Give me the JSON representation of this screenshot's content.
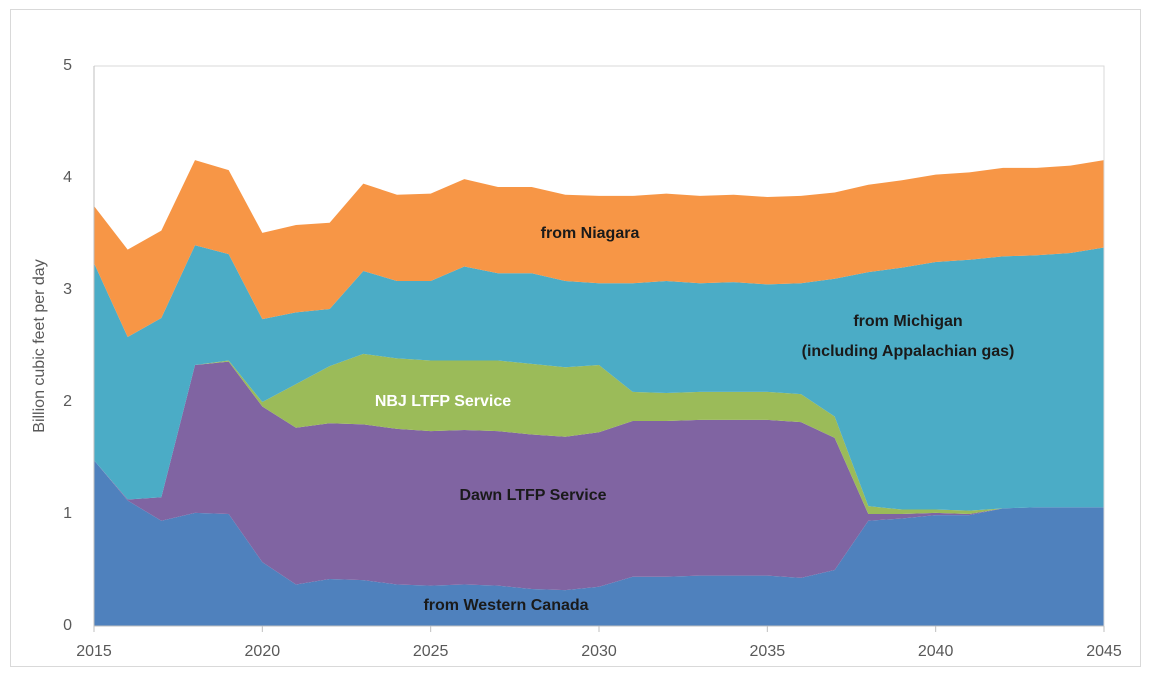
{
  "chart_data": {
    "type": "stacked_area",
    "y_label": "Billion cubic feet per day",
    "x": [
      2015,
      2016,
      2017,
      2018,
      2019,
      2020,
      2021,
      2022,
      2023,
      2024,
      2025,
      2026,
      2027,
      2028,
      2029,
      2030,
      2031,
      2032,
      2033,
      2034,
      2035,
      2036,
      2037,
      2038,
      2039,
      2040,
      2041,
      2042,
      2043,
      2044,
      2045
    ],
    "xlim": [
      2015,
      2045
    ],
    "xticks": [
      2015,
      2020,
      2025,
      2030,
      2035,
      2040,
      2045
    ],
    "ylim": [
      0,
      5
    ],
    "yticks": [
      0,
      1,
      2,
      3,
      4,
      5
    ],
    "grid": false,
    "series": [
      {
        "name": "from Western Canada",
        "color": "#4f81bd",
        "values": [
          1.48,
          1.12,
          0.94,
          1.01,
          1.0,
          0.57,
          0.37,
          0.42,
          0.41,
          0.37,
          0.36,
          0.37,
          0.36,
          0.33,
          0.32,
          0.35,
          0.44,
          0.44,
          0.45,
          0.45,
          0.45,
          0.43,
          0.5,
          0.94,
          0.96,
          0.99,
          0.99,
          1.05,
          1.06,
          1.06,
          1.06
        ]
      },
      {
        "name": "Dawn LTFP Service",
        "color": "#8064a2",
        "values": [
          0,
          0.01,
          0.21,
          1.32,
          1.36,
          1.39,
          1.4,
          1.39,
          1.39,
          1.39,
          1.38,
          1.38,
          1.38,
          1.38,
          1.37,
          1.38,
          1.39,
          1.39,
          1.39,
          1.39,
          1.39,
          1.39,
          1.18,
          0.06,
          0.04,
          0.02,
          0.01,
          0,
          0,
          0,
          0
        ]
      },
      {
        "name": "NBJ LTFP Service",
        "color": "#9bbb59",
        "values": [
          0,
          0,
          0,
          0,
          0.01,
          0.04,
          0.39,
          0.51,
          0.63,
          0.63,
          0.63,
          0.62,
          0.63,
          0.63,
          0.62,
          0.6,
          0.26,
          0.25,
          0.25,
          0.25,
          0.25,
          0.25,
          0.19,
          0.07,
          0.04,
          0.03,
          0.03,
          0,
          0,
          0,
          0
        ]
      },
      {
        "name": "from Michigan\n(including Appalachian gas)",
        "color": "#4bacc6",
        "values": [
          1.76,
          1.45,
          1.6,
          1.07,
          0.95,
          0.74,
          0.64,
          0.51,
          0.74,
          0.69,
          0.71,
          0.84,
          0.78,
          0.81,
          0.77,
          0.73,
          0.97,
          1.0,
          0.97,
          0.98,
          0.96,
          0.99,
          1.23,
          2.09,
          2.16,
          2.21,
          2.24,
          2.25,
          2.25,
          2.27,
          2.32
        ]
      },
      {
        "name": "from Niagara",
        "color": "#f79646",
        "values": [
          0.51,
          0.78,
          0.78,
          0.76,
          0.75,
          0.77,
          0.78,
          0.77,
          0.78,
          0.77,
          0.78,
          0.78,
          0.77,
          0.77,
          0.77,
          0.78,
          0.78,
          0.78,
          0.78,
          0.78,
          0.78,
          0.78,
          0.77,
          0.78,
          0.78,
          0.78,
          0.78,
          0.79,
          0.78,
          0.78,
          0.78
        ]
      }
    ]
  }
}
